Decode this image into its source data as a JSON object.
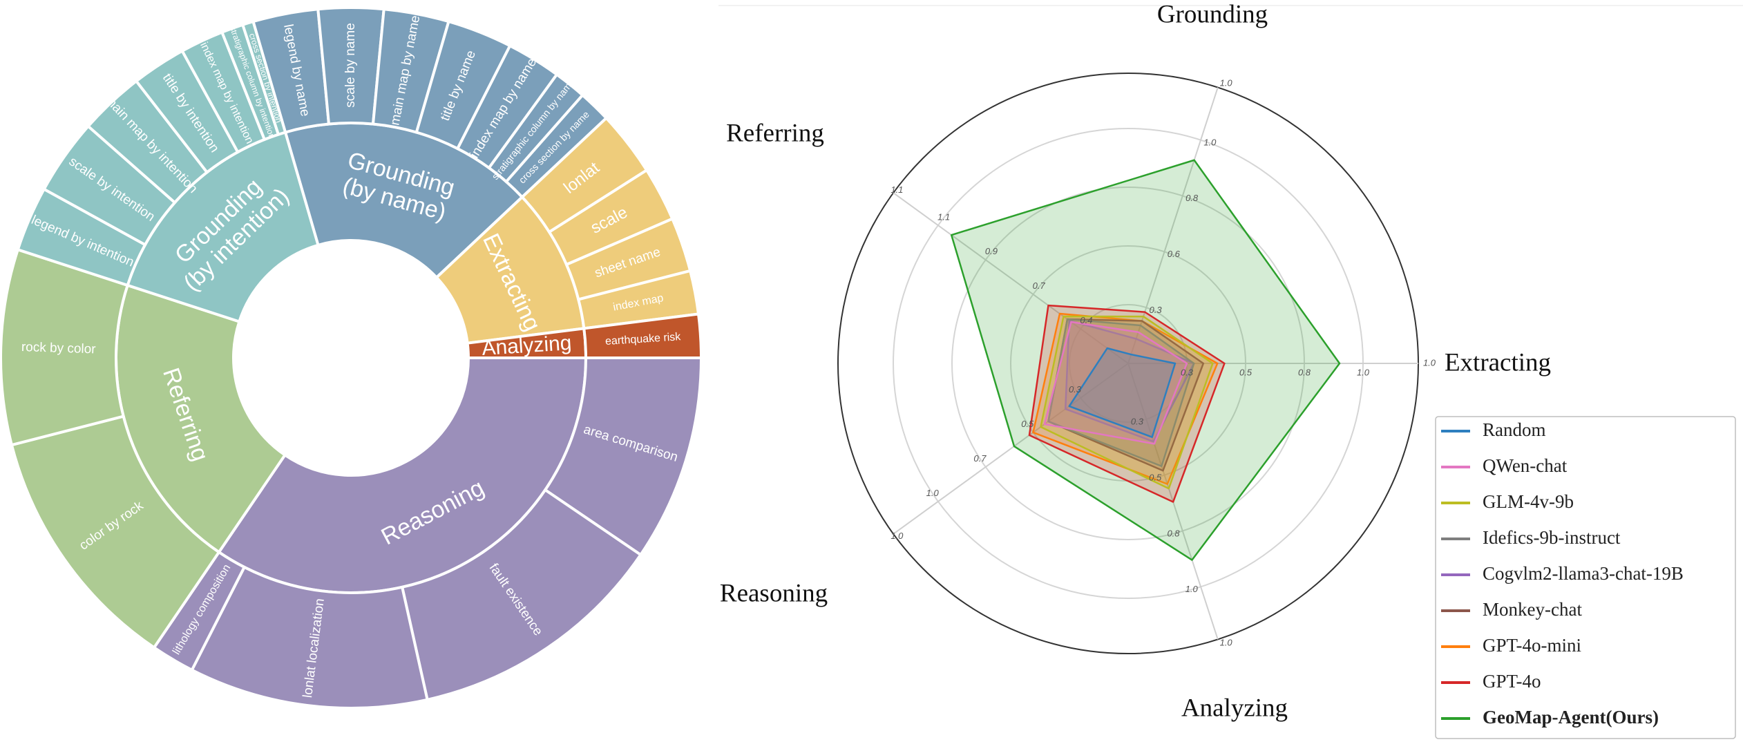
{
  "chart_data": [
    {
      "type": "sunburst",
      "inner": [
        {
          "name": "Reasoning",
          "value": 34.5,
          "color": "#9b8fba"
        },
        {
          "name": "Referring",
          "value": 20.5,
          "color": "#adcb93"
        },
        {
          "name": "Grounding\n(by intention)",
          "value": 15.5,
          "color": "#8fc5c4"
        },
        {
          "name": "Grounding\n(by name)",
          "value": 17.5,
          "color": "#7b9fba"
        },
        {
          "name": "Extracting",
          "value": 10,
          "color": "#eecc7b"
        },
        {
          "name": "Analyzing",
          "value": 2,
          "color": "#c0562b"
        }
      ],
      "outer": [
        {
          "name": "area comparison",
          "value": 9.5,
          "group": 0
        },
        {
          "name": "fault existence",
          "value": 12,
          "group": 0
        },
        {
          "name": "lonlat localization",
          "value": 11,
          "group": 0
        },
        {
          "name": "lithology composition",
          "value": 2,
          "group": 0
        },
        {
          "name": "color by rock",
          "value": 11.5,
          "group": 1
        },
        {
          "name": "rock by color",
          "value": 9,
          "group": 1
        },
        {
          "name": "legend by intention",
          "value": 3,
          "group": 2
        },
        {
          "name": "scale by intention",
          "value": 3.5,
          "group": 2
        },
        {
          "name": "main map by intention",
          "value": 3,
          "group": 2
        },
        {
          "name": "title by intention",
          "value": 2.5,
          "group": 2
        },
        {
          "name": "index map by intention",
          "value": 2,
          "group": 2
        },
        {
          "name": "stratigraphic column by intention",
          "value": 1,
          "group": 2
        },
        {
          "name": "cross section by intention",
          "value": 0.5,
          "group": 2
        },
        {
          "name": "legend by name",
          "value": 3,
          "group": 3
        },
        {
          "name": "scale by name",
          "value": 3,
          "group": 3
        },
        {
          "name": "main map by name",
          "value": 3,
          "group": 3
        },
        {
          "name": "title by name",
          "value": 3,
          "group": 3
        },
        {
          "name": "index map by name",
          "value": 2.5,
          "group": 3
        },
        {
          "name": "stratigraphic column by name",
          "value": 1.5,
          "group": 3
        },
        {
          "name": "cross section by name",
          "value": 1.5,
          "group": 3
        },
        {
          "name": "lonlat",
          "value": 3,
          "group": 4
        },
        {
          "name": "scale",
          "value": 2.5,
          "group": 4
        },
        {
          "name": "sheet name",
          "value": 2.5,
          "group": 4
        },
        {
          "name": "index map",
          "value": 2,
          "group": 4
        },
        {
          "name": "earthquake risk",
          "value": 2,
          "group": 5
        }
      ]
    },
    {
      "type": "radar",
      "axes": [
        {
          "name": "Extracting",
          "ticks": [
            "0.3",
            "0.5",
            "0.8",
            "1.0"
          ],
          "max": 1.0
        },
        {
          "name": "Grounding",
          "ticks": [
            "0.3",
            "0.6",
            "0.8",
            "1.0"
          ],
          "max": 1.0
        },
        {
          "name": "Referring",
          "ticks": [
            "0.4",
            "0.7",
            "0.9",
            "1.1"
          ],
          "max": 1.1
        },
        {
          "name": "Reasoning",
          "ticks": [
            "0.3",
            "0.5",
            "0.7",
            "1.0"
          ],
          "max": 1.0
        },
        {
          "name": "Analyzing",
          "ticks": [
            "0.3",
            "0.5",
            "0.8",
            "1.0"
          ],
          "max": 1.0
        }
      ],
      "series": [
        {
          "name": "Random",
          "color": "#2e7fbf",
          "values": [
            0.2,
            0.04,
            0.11,
            0.31,
            0.33
          ]
        },
        {
          "name": "QWen-chat",
          "color": "#e377c2",
          "values": [
            0.25,
            0.14,
            0.3,
            0.44,
            0.36
          ]
        },
        {
          "name": "GLM-4v-9b",
          "color": "#bcbd22",
          "values": [
            0.36,
            0.21,
            0.34,
            0.46,
            0.56
          ]
        },
        {
          "name": "Idefics-9b-instruct",
          "color": "#7f7f7f",
          "values": [
            0.28,
            0.17,
            0.32,
            0.42,
            0.46
          ]
        },
        {
          "name": "Cogvlm2-llama3-chat-19B",
          "color": "#9467bd",
          "values": [
            0.28,
            0.11,
            0.31,
            0.33,
            0.35
          ]
        },
        {
          "name": "Monkey-chat",
          "color": "#8c564b",
          "values": [
            0.32,
            0.19,
            0.32,
            0.42,
            0.48
          ]
        },
        {
          "name": "GPT-4o-mini",
          "color": "#ff7f0e",
          "values": [
            0.38,
            0.19,
            0.36,
            0.5,
            0.54
          ]
        },
        {
          "name": "GPT-4o",
          "color": "#d62728",
          "values": [
            0.41,
            0.23,
            0.42,
            0.52,
            0.62
          ]
        },
        {
          "name": "GeoMap-Agent(Ours)",
          "color": "#2ca02c",
          "values": [
            0.9,
            0.91,
            0.93,
            0.6,
            0.88
          ]
        }
      ]
    }
  ]
}
